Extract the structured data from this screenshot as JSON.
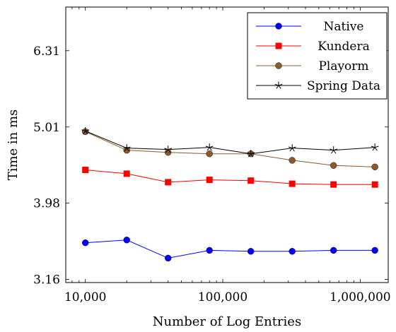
{
  "chart_data": {
    "type": "line",
    "xlabel": "Number of Log Entries",
    "ylabel": "Time in ms",
    "xscale": "log",
    "yscale": "log",
    "xlim": [
      7200,
      1600000
    ],
    "ylim": [
      3.13,
      7.2
    ],
    "xticks": [
      10000,
      100000,
      1000000
    ],
    "xtick_labels": [
      "10,000",
      "100,000",
      "1,000,000"
    ],
    "yticks": [
      3.16,
      3.98,
      5.01,
      6.31
    ],
    "ytick_labels": [
      "3.16",
      "3.98",
      "5.01",
      "6.31"
    ],
    "grid": false,
    "legend_position": "top-right",
    "x": [
      10000,
      20000,
      40000,
      80000,
      160000,
      320000,
      640000,
      1280000
    ],
    "series": [
      {
        "name": "Native",
        "color": "#0000ff",
        "marker": "circle",
        "values": [
          3.53,
          3.56,
          3.37,
          3.45,
          3.44,
          3.44,
          3.45,
          3.45
        ]
      },
      {
        "name": "Kundera",
        "color": "#ff0000",
        "marker": "square",
        "values": [
          4.4,
          4.35,
          4.24,
          4.27,
          4.26,
          4.22,
          4.21,
          4.21
        ]
      },
      {
        "name": "Playorm",
        "color": "#8b5a2b",
        "marker": "circle",
        "values": [
          4.94,
          4.67,
          4.64,
          4.62,
          4.62,
          4.53,
          4.46,
          4.44
        ]
      },
      {
        "name": "Spring Data",
        "color": "#000000",
        "marker": "star",
        "values": [
          4.95,
          4.7,
          4.68,
          4.71,
          4.62,
          4.7,
          4.67,
          4.71
        ]
      }
    ]
  }
}
